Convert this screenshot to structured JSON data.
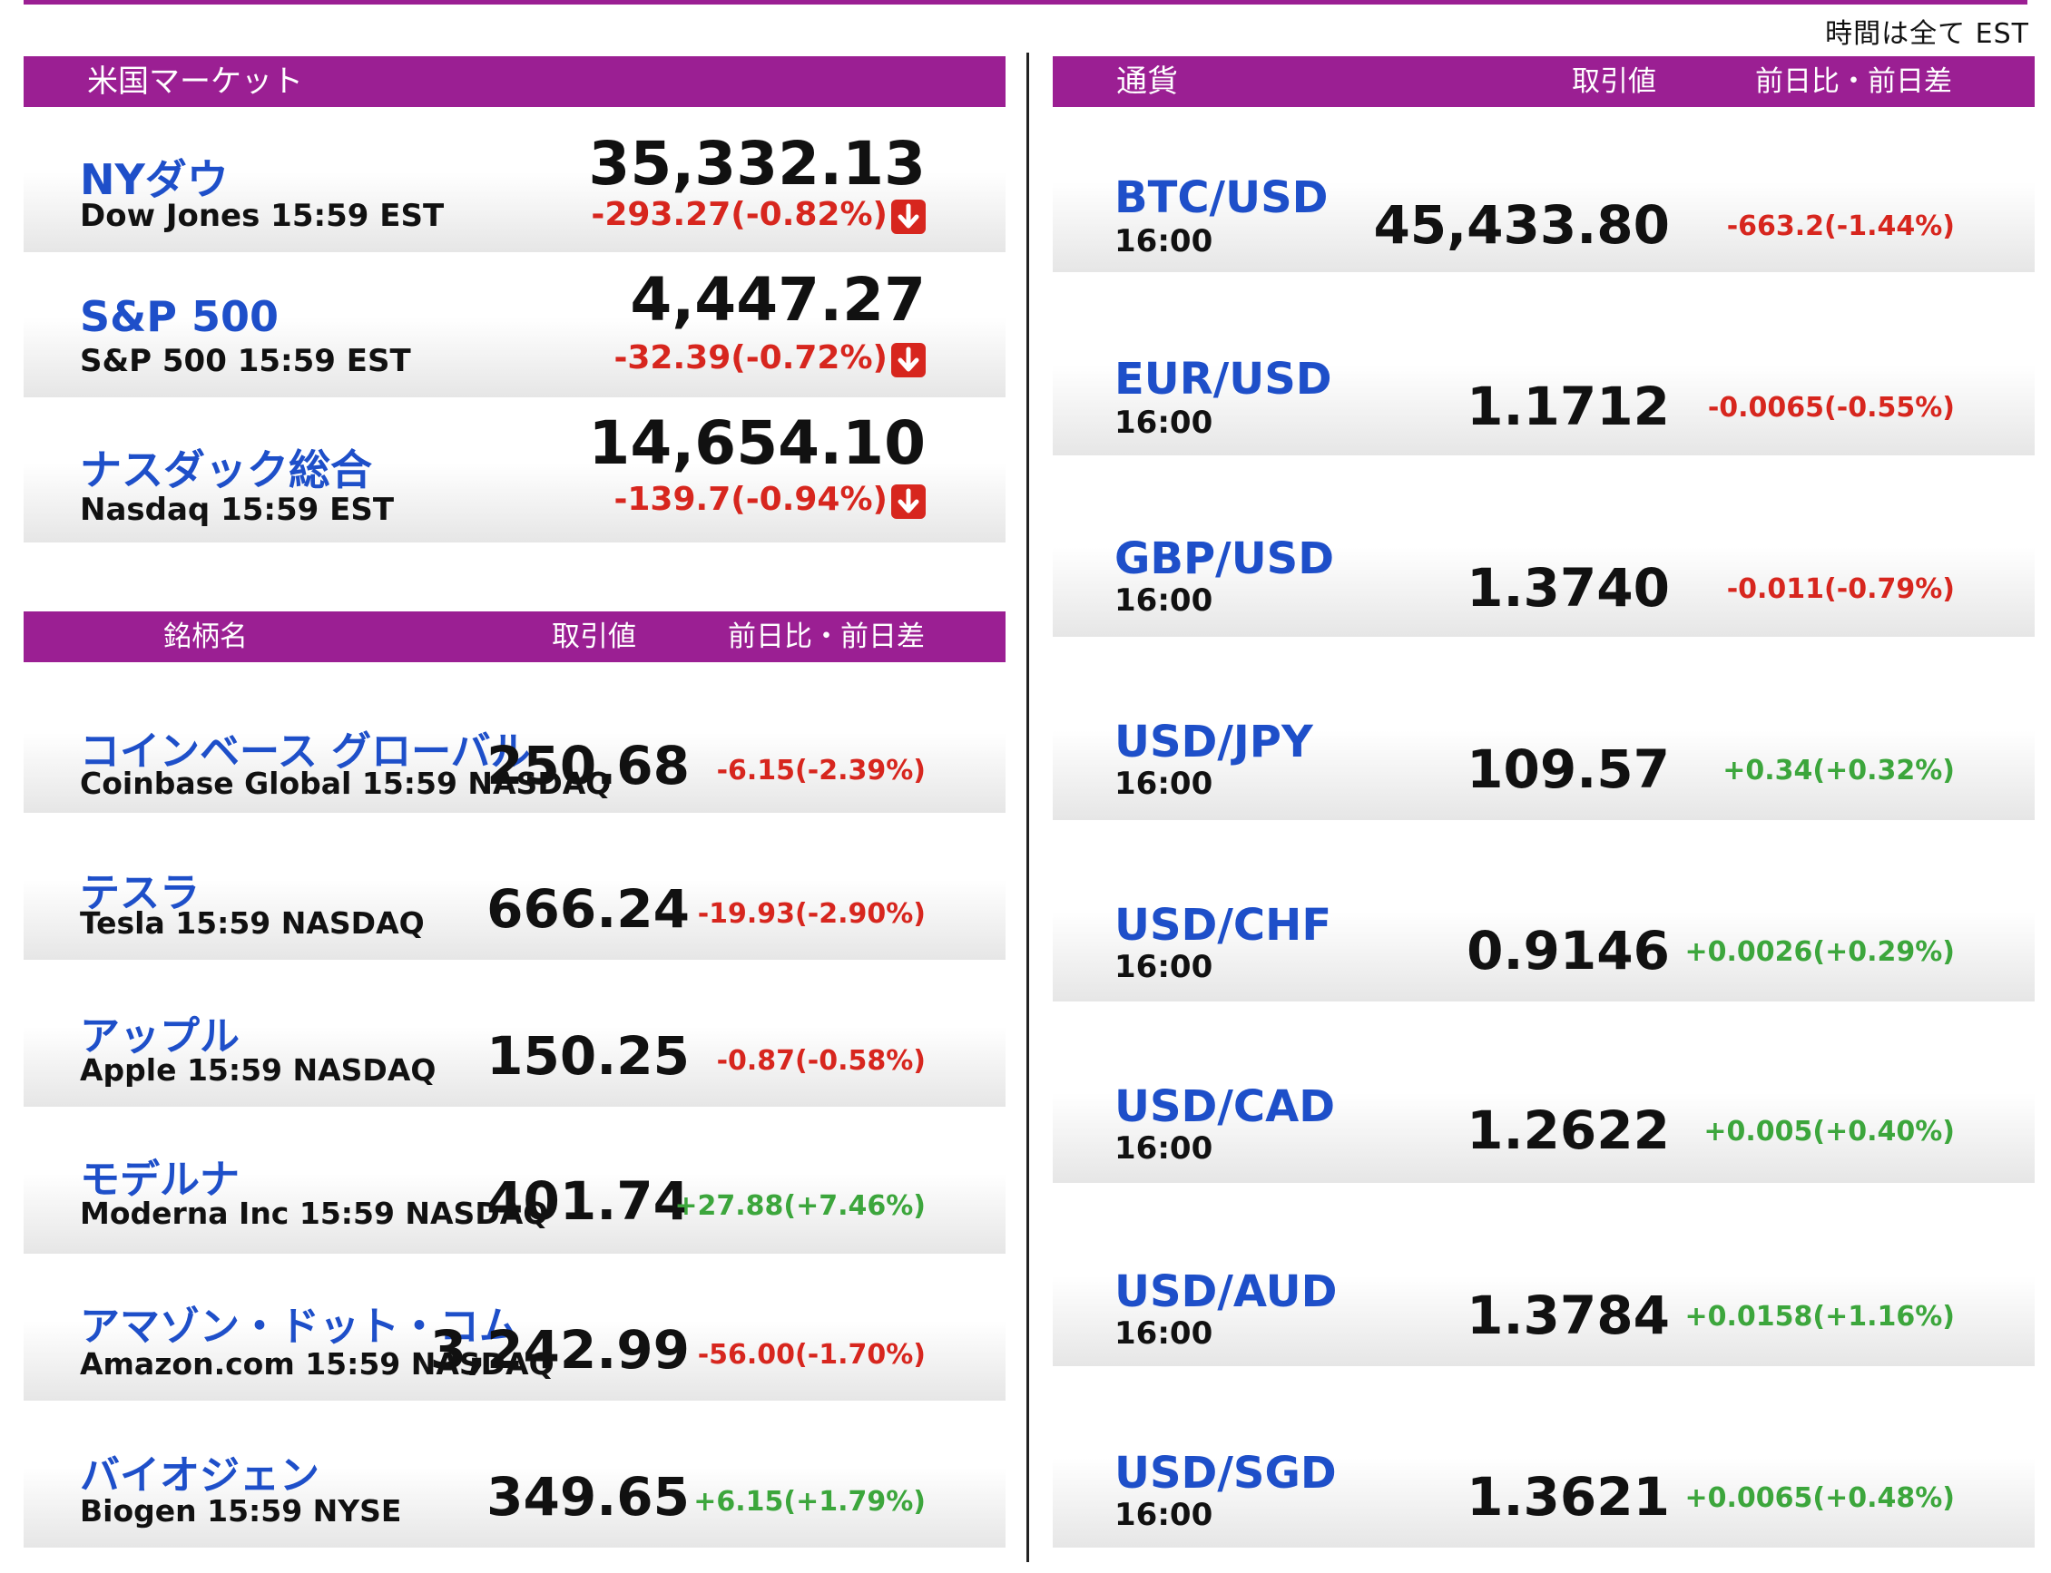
{
  "timezone_note": "時間は全て EST",
  "us_market": {
    "header": "米国マーケット",
    "indices": [
      {
        "name": "NYダウ",
        "sub": "Dow Jones 15:59 EST",
        "value": "35,332.13",
        "change": "-293.27(-0.82%)",
        "direction": "down"
      },
      {
        "name": "S&P 500",
        "sub": "S&P 500 15:59 EST",
        "value": "4,447.27",
        "change": "-32.39(-0.72%)",
        "direction": "down"
      },
      {
        "name": "ナスダック総合",
        "sub": "Nasdaq 15:59 EST",
        "value": "14,654.10",
        "change": "-139.7(-0.94%)",
        "direction": "down"
      }
    ]
  },
  "stocks": {
    "headers": {
      "name": "銘柄名",
      "value": "取引値",
      "change": "前日比・前日差"
    },
    "rows": [
      {
        "name": "コインベース グローバル",
        "sub": "Coinbase Global 15:59  NASDAQ",
        "value": "250.68",
        "change": "-6.15(-2.39%)",
        "direction": "down"
      },
      {
        "name": "テスラ",
        "sub": "Tesla 15:59  NASDAQ",
        "value": "666.24",
        "change": "-19.93(-2.90%)",
        "direction": "down"
      },
      {
        "name": "アップル",
        "sub": "Apple 15:59  NASDAQ",
        "value": "150.25",
        "change": "-0.87(-0.58%)",
        "direction": "down"
      },
      {
        "name": "モデルナ",
        "sub": "Moderna Inc 15:59  NASDAQ",
        "value": "401.74",
        "change": "+27.88(+7.46%)",
        "direction": "up"
      },
      {
        "name": "アマゾン・ドット・コム",
        "sub": "Amazon.com 15:59  NASDAQ",
        "value": "3,242.99",
        "change": "-56.00(-1.70%)",
        "direction": "down"
      },
      {
        "name": "バイオジェン",
        "sub": "Biogen 15:59  NYSE",
        "value": "349.65",
        "change": "+6.15(+1.79%)",
        "direction": "up"
      }
    ]
  },
  "currency": {
    "headers": {
      "name": "通貨",
      "value": "取引値",
      "change": "前日比・前日差"
    },
    "rows": [
      {
        "pair": "BTC/USD",
        "time": "16:00",
        "value": "45,433.80",
        "change": "-663.2(-1.44%)",
        "direction": "down"
      },
      {
        "pair": "EUR/USD",
        "time": "16:00",
        "value": "1.1712",
        "change": "-0.0065(-0.55%)",
        "direction": "down"
      },
      {
        "pair": "GBP/USD",
        "time": "16:00",
        "value": "1.3740",
        "change": "-0.011(-0.79%)",
        "direction": "down"
      },
      {
        "pair": "USD/JPY",
        "time": "16:00",
        "value": "109.57",
        "change": "+0.34(+0.32%)",
        "direction": "up"
      },
      {
        "pair": "USD/CHF",
        "time": "16:00",
        "value": "0.9146",
        "change": "+0.0026(+0.29%)",
        "direction": "up"
      },
      {
        "pair": "USD/CAD",
        "time": "16:00",
        "value": "1.2622",
        "change": "+0.005(+0.40%)",
        "direction": "up"
      },
      {
        "pair": "USD/AUD",
        "time": "16:00",
        "value": "1.3784",
        "change": "+0.0158(+1.16%)",
        "direction": "up"
      },
      {
        "pair": "USD/SGD",
        "time": "16:00",
        "value": "1.3621",
        "change": "+0.0065(+0.48%)",
        "direction": "up"
      }
    ]
  },
  "colors": {
    "header_bar": "#9b1f93",
    "name_blue": "#1e4fc9",
    "negative": "#d7261e",
    "positive": "#3ca63c"
  },
  "icons": {
    "down": "arrow-down-icon"
  }
}
